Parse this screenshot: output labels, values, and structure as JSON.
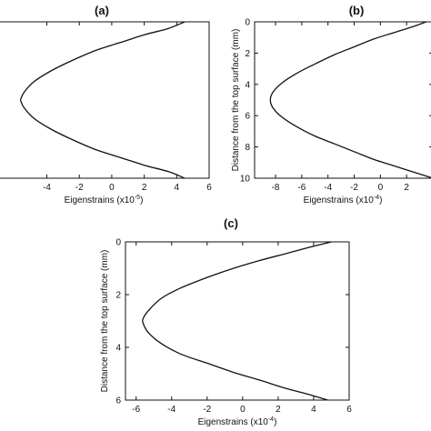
{
  "chart_data": [
    {
      "type": "line",
      "panel_label": "(a)",
      "title": "",
      "xlabel": "Eigenstrains (x10",
      "xlabel_exp": "-5",
      "xlabel_close": ")",
      "ylabel": "",
      "xlim": [
        -7,
        6
      ],
      "ylim": [
        6,
        0
      ],
      "xticks": [
        -4,
        -2,
        0,
        2,
        4,
        6
      ],
      "yticks": [],
      "grid": false,
      "series": [
        {
          "x": [
            4.5,
            3.5,
            2.0,
            0.5,
            -1.0,
            -2.5,
            -3.8,
            -4.8,
            -5.4,
            -5.6,
            -5.6,
            -5.4,
            -4.8,
            -3.8,
            -2.5,
            -1.0,
            0.5,
            2.0,
            3.5,
            4.5
          ],
          "y": [
            0.0,
            0.25,
            0.5,
            0.8,
            1.1,
            1.5,
            1.9,
            2.3,
            2.7,
            2.95,
            3.05,
            3.3,
            3.7,
            4.1,
            4.5,
            4.9,
            5.2,
            5.5,
            5.75,
            6.0
          ]
        }
      ]
    },
    {
      "type": "line",
      "panel_label": "(b)",
      "title": "",
      "xlabel": "Eigenstrains (x10",
      "xlabel_exp": "-4",
      "xlabel_close": ")",
      "ylabel": "Distance from the top surface (mm)",
      "xlim": [
        -9.6,
        4
      ],
      "ylim": [
        10,
        0
      ],
      "xticks": [
        -8,
        -6,
        -4,
        -2,
        0,
        2
      ],
      "yticks": [
        0,
        2,
        4,
        6,
        8,
        10
      ],
      "grid": false,
      "series": [
        {
          "x": [
            3.5,
            2.5,
            1.0,
            -0.5,
            -2.0,
            -3.5,
            -5.0,
            -6.4,
            -7.5,
            -8.2,
            -8.4,
            -8.2,
            -7.5,
            -6.4,
            -5.0,
            -3.5,
            -2.0,
            -0.5,
            1.0,
            2.5,
            4.0
          ],
          "y": [
            0.0,
            0.3,
            0.7,
            1.1,
            1.6,
            2.1,
            2.7,
            3.3,
            3.9,
            4.5,
            5.0,
            5.5,
            6.1,
            6.7,
            7.3,
            7.8,
            8.3,
            8.8,
            9.2,
            9.6,
            10.0
          ]
        }
      ]
    },
    {
      "type": "line",
      "panel_label": "(c)",
      "title": "",
      "xlabel": "Eigenstrains (x10",
      "xlabel_exp": "-4",
      "xlabel_close": ")",
      "ylabel": "Distance from the top surface (mm)",
      "xlim": [
        -6.6,
        6
      ],
      "ylim": [
        6,
        0
      ],
      "xticks": [
        -6,
        -4,
        -2,
        0,
        2,
        4,
        6
      ],
      "yticks": [
        0,
        2,
        4,
        6
      ],
      "grid": false,
      "series": [
        {
          "x": [
            5.0,
            3.8,
            2.4,
            1.0,
            -0.5,
            -2.0,
            -3.5,
            -4.6,
            -5.3,
            -5.6,
            -5.6,
            -5.3,
            -4.6,
            -3.5,
            -2.0,
            -0.5,
            1.0,
            2.4,
            3.8,
            4.8
          ],
          "y": [
            0.0,
            0.2,
            0.45,
            0.7,
            1.0,
            1.35,
            1.75,
            2.15,
            2.6,
            2.9,
            3.1,
            3.45,
            3.85,
            4.25,
            4.6,
            4.95,
            5.25,
            5.55,
            5.8,
            6.0
          ]
        }
      ]
    }
  ]
}
